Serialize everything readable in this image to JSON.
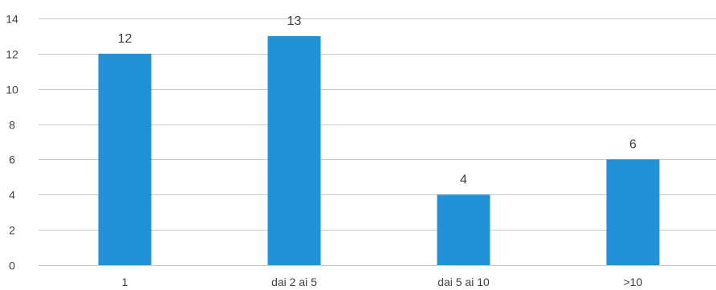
{
  "chart_data": {
    "type": "bar",
    "categories": [
      "1",
      "dai 2 ai 5",
      "dai 5 ai 10",
      ">10"
    ],
    "values": [
      12,
      13,
      4,
      6
    ],
    "title": "",
    "xlabel": "",
    "ylabel": "",
    "ylim": [
      0,
      14
    ],
    "yticks": [
      0,
      2,
      4,
      6,
      8,
      10,
      12,
      14
    ],
    "grid": true,
    "legend": "none",
    "data_labels": true,
    "bar_color": "#2191d8"
  }
}
